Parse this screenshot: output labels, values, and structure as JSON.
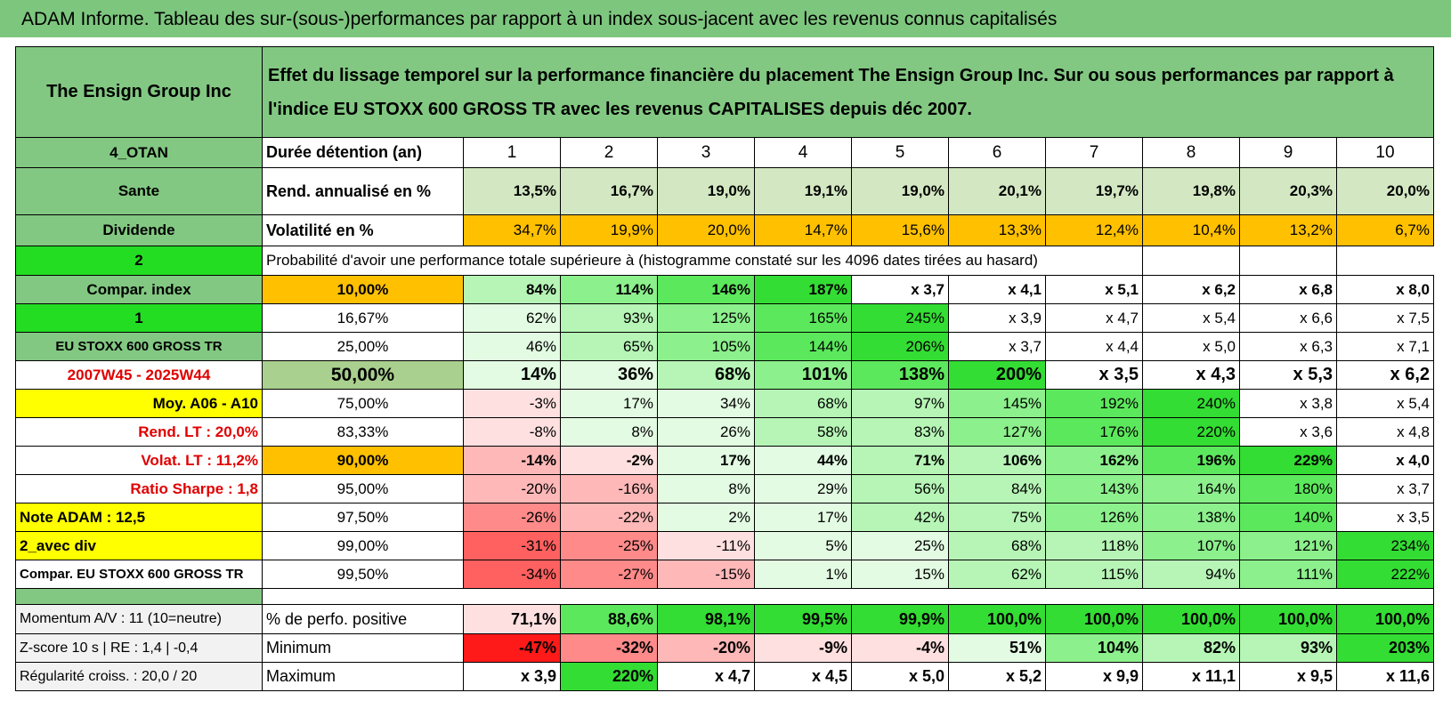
{
  "header": {
    "title": "ADAM Informe. Tableau des sur-(sous-)performances par rapport à un index sous-jacent avec les revenus connus capitalisés"
  },
  "table": {
    "name": "The Ensign Group Inc",
    "description": "Effet du lissage temporel sur la performance financière du placement The Ensign Group Inc. Sur ou sous performances par rapport à l'indice EU STOXX 600 GROSS TR avec les revenus CAPITALISES depuis déc 2007.",
    "rows": [
      [
        "4_OTAN",
        "Durée détention (an)",
        1,
        2,
        3,
        4,
        5,
        6,
        7,
        8,
        9,
        10
      ],
      [
        "Sante",
        "Rend. annualisé en %",
        "13,5%",
        "16,7%",
        "19,0%",
        "19,1%",
        "19,0%",
        "20,1%",
        "19,7%",
        "19,8%",
        "20,3%",
        "20,0%"
      ],
      [
        "Dividende",
        "Volatilité en %",
        "34,7%",
        "19,9%",
        "20,0%",
        "14,7%",
        "15,6%",
        "13,3%",
        "12,4%",
        "10,4%",
        "13,2%",
        "6,7%"
      ],
      [
        "2",
        "Probabilité d'avoir une performance totale supérieure à (histogramme constaté sur les 4096 dates tirées au hasard)"
      ],
      [
        "Compar. index",
        "10,00%",
        "84%",
        "114%",
        "146%",
        "187%",
        "x 3,7",
        "x 4,1",
        "x 5,1",
        "x 6,2",
        "x 6,8",
        "x 8,0"
      ],
      [
        "1",
        "16,67%",
        "62%",
        "93%",
        "125%",
        "165%",
        "245%",
        "x 3,9",
        "x 4,7",
        "x 5,4",
        "x 6,6",
        "x 7,5"
      ],
      [
        "EU STOXX 600 GROSS TR",
        "25,00%",
        "46%",
        "65%",
        "105%",
        "144%",
        "206%",
        "x 3,7",
        "x 4,4",
        "x 5,0",
        "x 6,3",
        "x 7,1"
      ],
      [
        "2007W45 - 2025W44",
        "50,00%",
        "14%",
        "36%",
        "68%",
        "101%",
        "138%",
        "200%",
        "x 3,5",
        "x 4,3",
        "x 5,3",
        "x 6,2"
      ],
      [
        "Moy. A06 - A10",
        "75,00%",
        "-3%",
        "17%",
        "34%",
        "68%",
        "97%",
        "145%",
        "192%",
        "240%",
        "x 3,8",
        "x 5,4"
      ],
      [
        "Rend. LT :    20,0%",
        "83,33%",
        "-8%",
        "8%",
        "26%",
        "58%",
        "83%",
        "127%",
        "176%",
        "220%",
        "x 3,6",
        "x 4,8"
      ],
      [
        "Volat. LT :    11,2%",
        "90,00%",
        "-14%",
        "-2%",
        "17%",
        "44%",
        "71%",
        "106%",
        "162%",
        "196%",
        "229%",
        "x 4,0"
      ],
      [
        "Ratio Sharpe :    1,8",
        "95,00%",
        "-20%",
        "-16%",
        "8%",
        "29%",
        "56%",
        "84%",
        "143%",
        "164%",
        "180%",
        "x 3,7"
      ],
      [
        "Note ADAM : 12,5",
        "97,50%",
        "-26%",
        "-22%",
        "2%",
        "17%",
        "42%",
        "75%",
        "126%",
        "138%",
        "140%",
        "x 3,5"
      ],
      [
        "2_avec div",
        "99,00%",
        "-31%",
        "-25%",
        "-11%",
        "5%",
        "25%",
        "68%",
        "118%",
        "107%",
        "121%",
        "234%"
      ],
      [
        "Compar. EU STOXX 600 GROSS TR",
        "99,50%",
        "-34%",
        "-27%",
        "-15%",
        "1%",
        "15%",
        "62%",
        "115%",
        "94%",
        "111%",
        "222%"
      ]
    ],
    "stats_rows": [
      [
        "Momentum A/V : 11 (10=neutre)",
        "% de perfo. positive",
        "71,1%",
        "88,6%",
        "98,1%",
        "99,5%",
        "99,9%",
        "100,0%",
        "100,0%",
        "100,0%",
        "100,0%",
        "100,0%"
      ],
      [
        "Z-score 10 s | RE : 1,4 | -0,4",
        "Minimum",
        "-47%",
        "-32%",
        "-20%",
        "-9%",
        "-4%",
        "51%",
        "104%",
        "82%",
        "93%",
        "203%"
      ],
      [
        "Régularité croiss. : 20,0 / 20",
        "Maximum",
        "x 3,9",
        "220%",
        "x 4,7",
        "x 4,5",
        "x 5,0",
        "x 5,2",
        "x 9,9",
        "x 11,1",
        "x 9,5",
        "x 11,6"
      ]
    ]
  }
}
